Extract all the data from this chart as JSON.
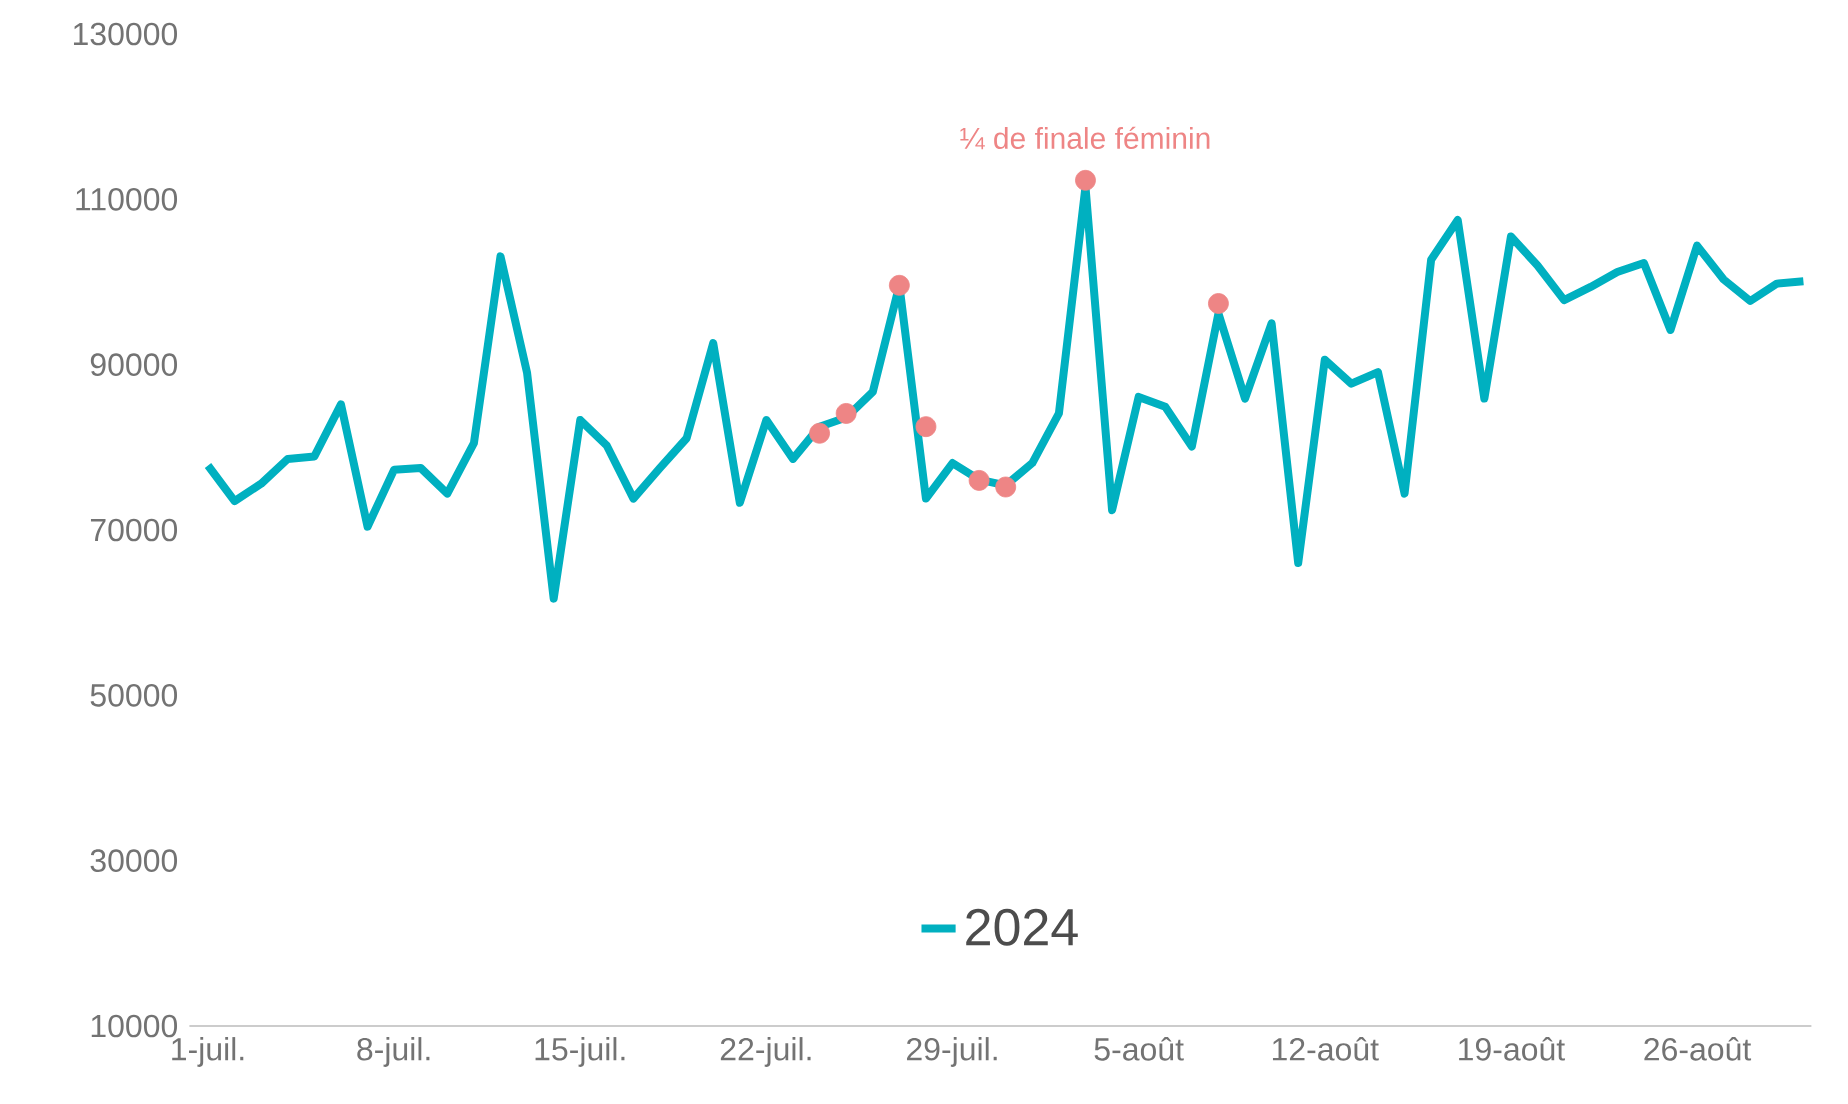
{
  "chart_data": {
    "type": "line",
    "categories": [
      "1-juil.",
      null,
      null,
      null,
      null,
      null,
      null,
      "8-juil.",
      null,
      null,
      null,
      null,
      null,
      null,
      "15-juil.",
      null,
      null,
      null,
      null,
      null,
      null,
      "22-juil.",
      null,
      null,
      null,
      null,
      null,
      null,
      "29-juil.",
      null,
      null,
      null,
      null,
      null,
      null,
      "5-août",
      null,
      null,
      null,
      null,
      null,
      null,
      "12-août",
      null,
      null,
      null,
      null,
      null,
      null,
      "19-août",
      null,
      null,
      null,
      null,
      null,
      null,
      "26-août",
      null,
      null,
      null,
      null
    ],
    "series": [
      {
        "name": "2024",
        "color": "#00b0c0",
        "marker": "none",
        "values": [
          77800,
          73500,
          75600,
          78600,
          78900,
          85200,
          70400,
          77300,
          77500,
          74400,
          80500,
          103100,
          89000,
          61700,
          83300,
          80200,
          73800,
          77500,
          81100,
          92600,
          73300,
          83300,
          78600,
          82500,
          83600,
          86700,
          99600,
          73800,
          78100,
          76100,
          75400,
          78100,
          84100,
          111500,
          72400,
          86100,
          84900,
          80100,
          96200,
          85900,
          95000,
          66000,
          90600,
          87700,
          89100,
          74400,
          102700,
          107500,
          85900,
          105500,
          102000,
          97800,
          99400,
          101200,
          102300,
          94200,
          104400,
          100300,
          97700,
          99800,
          100100
        ]
      },
      {
        "type": "scatter",
        "color": "#ee8585",
        "marker": "circle",
        "values": [
          null,
          null,
          null,
          null,
          null,
          null,
          null,
          null,
          null,
          null,
          null,
          null,
          null,
          null,
          null,
          null,
          null,
          null,
          null,
          null,
          null,
          null,
          null,
          81700,
          84100,
          null,
          99600,
          82500,
          null,
          76000,
          75200,
          null,
          null,
          112300,
          null,
          null,
          null,
          null,
          97400,
          null,
          null,
          null,
          null,
          null,
          null,
          null,
          null,
          null,
          null,
          null,
          null,
          null,
          null,
          null,
          null,
          null,
          null,
          null,
          null,
          null,
          null
        ]
      }
    ],
    "ylim": [
      10000,
      130000
    ],
    "yticks": [
      10000,
      30000,
      50000,
      70000,
      90000,
      110000,
      130000
    ],
    "legend": "bottom",
    "annotations": [
      {
        "text": "¼ de finale féminin",
        "y": 112300
      }
    ]
  }
}
